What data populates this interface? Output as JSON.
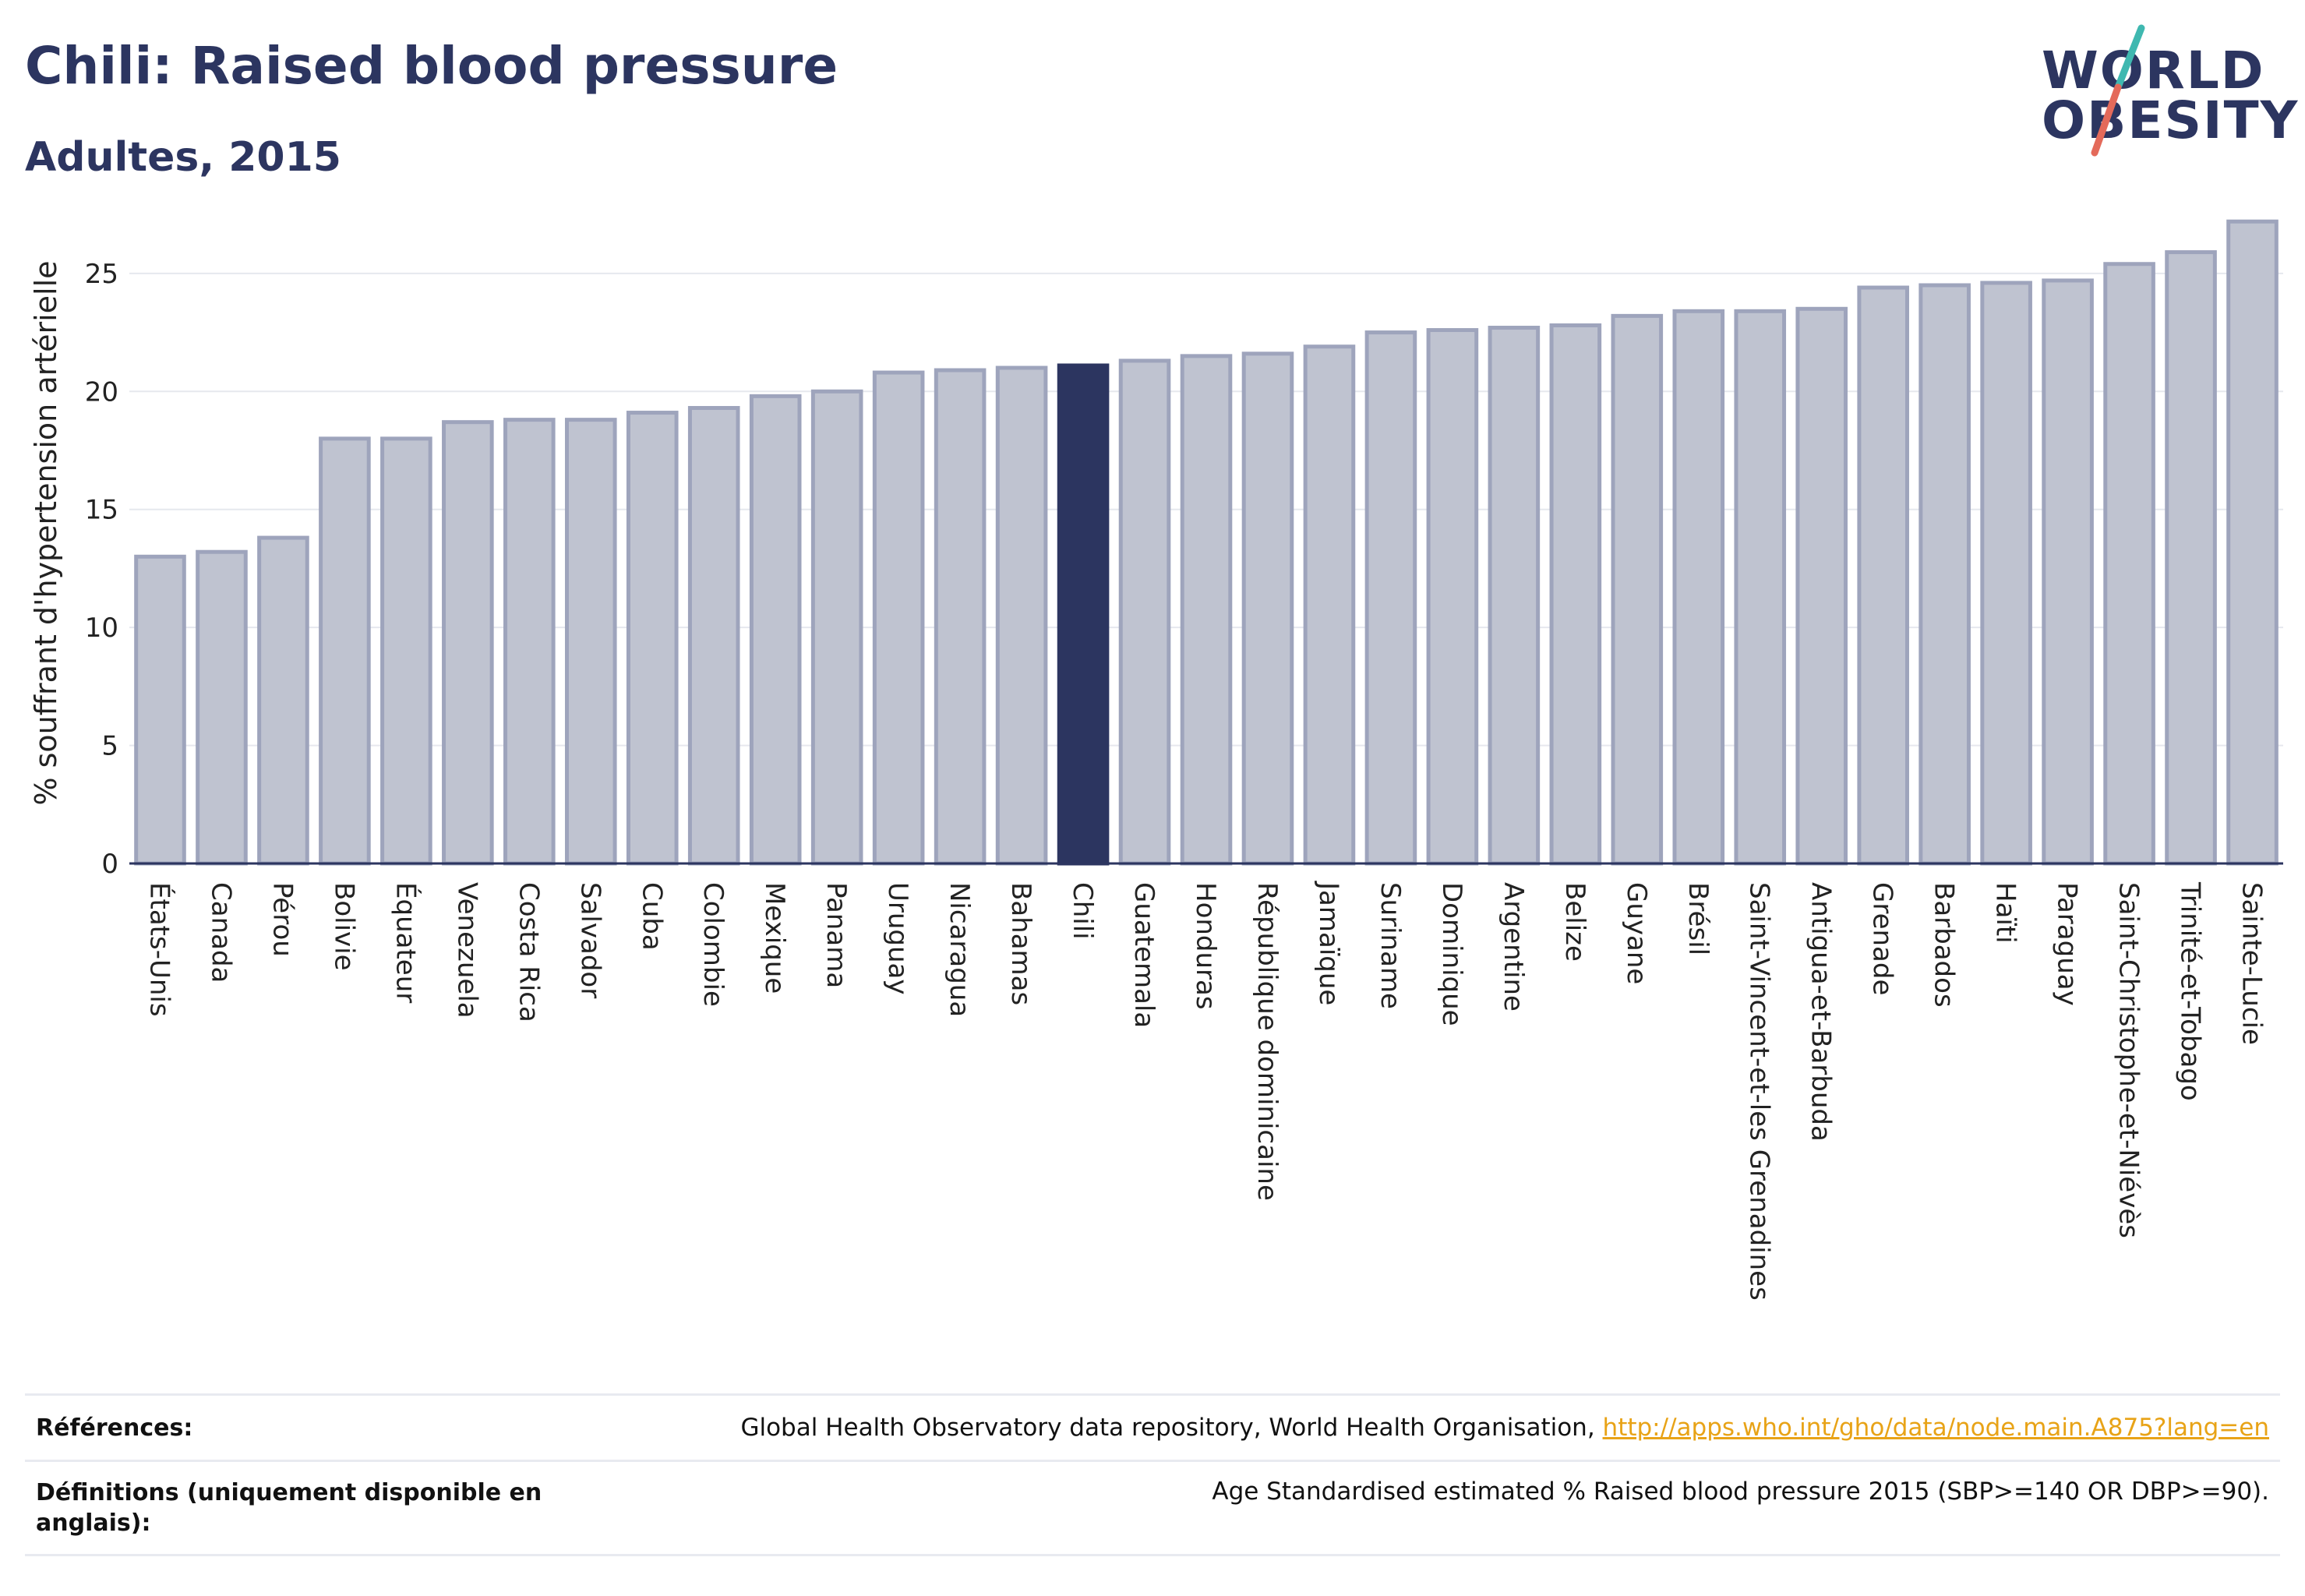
{
  "title": "Chili: Raised blood pressure",
  "subtitle": "Adultes, 2015",
  "logo": {
    "line1": "WORLD",
    "line2": "OBESITY"
  },
  "colors": {
    "bar": "#bfc3d0",
    "bar_stroke": "#9ea4bc",
    "highlight": "#2c3560",
    "grid": "#e6e8ee",
    "axis": "#2c3560"
  },
  "chart_data": {
    "type": "bar",
    "title": "Chili: Raised blood pressure",
    "subtitle": "Adultes, 2015",
    "xlabel": "",
    "ylabel": "% souffrant d'hypertension artérielle",
    "ylim": [
      0,
      28
    ],
    "yticks": [
      0,
      5,
      10,
      15,
      20,
      25
    ],
    "grid": true,
    "highlight": "Chili",
    "categories": [
      "États-Unis",
      "Canada",
      "Pérou",
      "Bolivie",
      "Équateur",
      "Venezuela",
      "Costa Rica",
      "Salvador",
      "Cuba",
      "Colombie",
      "Mexique",
      "Panama",
      "Uruguay",
      "Nicaragua",
      "Bahamas",
      "Chili",
      "Guatemala",
      "Honduras",
      "République dominicaine",
      "Jamaïque",
      "Suriname",
      "Dominique",
      "Argentine",
      "Belize",
      "Guyane",
      "Brésil",
      "Saint-Vincent-et-les Grenadines",
      "Antigua-et-Barbuda",
      "Grenade",
      "Barbados",
      "Haïti",
      "Paraguay",
      "Saint-Christophe-et-Niévès",
      "Trinité-et-Tobago",
      "Sainte-Lucie"
    ],
    "values": [
      13.0,
      13.2,
      13.8,
      18.0,
      18.0,
      18.7,
      18.8,
      18.8,
      19.1,
      19.3,
      19.8,
      20.0,
      20.8,
      20.9,
      21.0,
      21.1,
      21.3,
      21.5,
      21.6,
      21.9,
      22.5,
      22.6,
      22.7,
      22.8,
      23.2,
      23.4,
      23.4,
      23.5,
      24.4,
      24.5,
      24.6,
      24.7,
      25.4,
      25.9,
      27.2
    ]
  },
  "footer": {
    "references_label": "Références:",
    "references_text": "Global Health Observatory data repository, World Health Organisation, ",
    "references_link": "http://apps.who.int/gho/data/node.main.A875?lang=en",
    "definitions_label": "Définitions (uniquement disponible en anglais):",
    "definitions_text": "Age Standardised estimated % Raised blood pressure 2015 (SBP>=140 OR DBP>=90)."
  }
}
